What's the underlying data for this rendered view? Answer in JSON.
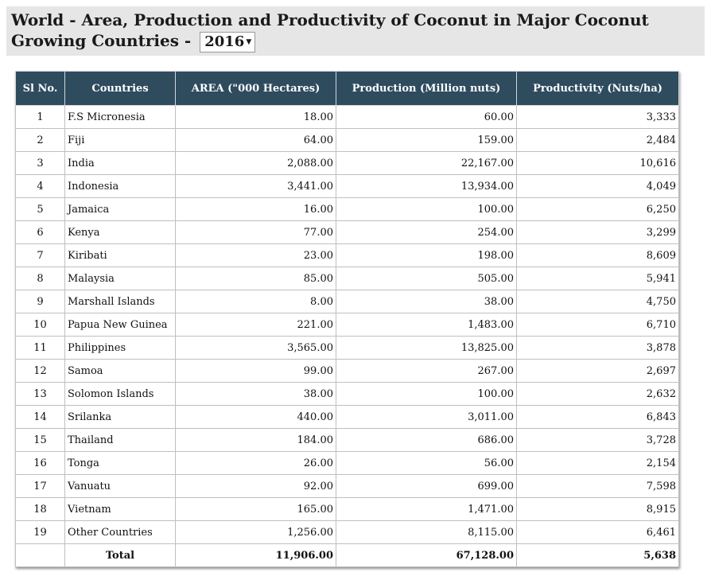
{
  "page": {
    "title_main": "World - Area, Production and Productivity of Coconut in Major Coconut Growing Countries -",
    "year_select": {
      "value": "2016",
      "arrow": "▼"
    }
  },
  "table": {
    "headers": [
      "Sl No.",
      "Countries",
      "AREA (\"000 Hectares)",
      "Production (Million nuts)",
      "Productivity (Nuts/ha)"
    ],
    "rows": [
      {
        "sl": "1",
        "country": "F.S Micronesia",
        "area": "18.00",
        "production": "60.00",
        "productivity": "3,333"
      },
      {
        "sl": "2",
        "country": "Fiji",
        "area": "64.00",
        "production": "159.00",
        "productivity": "2,484"
      },
      {
        "sl": "3",
        "country": "India",
        "area": "2,088.00",
        "production": "22,167.00",
        "productivity": "10,616"
      },
      {
        "sl": "4",
        "country": "Indonesia",
        "area": "3,441.00",
        "production": "13,934.00",
        "productivity": "4,049"
      },
      {
        "sl": "5",
        "country": "Jamaica",
        "area": "16.00",
        "production": "100.00",
        "productivity": "6,250"
      },
      {
        "sl": "6",
        "country": "Kenya",
        "area": "77.00",
        "production": "254.00",
        "productivity": "3,299"
      },
      {
        "sl": "7",
        "country": "Kiribati",
        "area": "23.00",
        "production": "198.00",
        "productivity": "8,609"
      },
      {
        "sl": "8",
        "country": "Malaysia",
        "area": "85.00",
        "production": "505.00",
        "productivity": "5,941"
      },
      {
        "sl": "9",
        "country": "Marshall Islands",
        "area": "8.00",
        "production": "38.00",
        "productivity": "4,750"
      },
      {
        "sl": "10",
        "country": "Papua New Guinea",
        "area": "221.00",
        "production": "1,483.00",
        "productivity": "6,710"
      },
      {
        "sl": "11",
        "country": "Philippines",
        "area": "3,565.00",
        "production": "13,825.00",
        "productivity": "3,878"
      },
      {
        "sl": "12",
        "country": "Samoa",
        "area": "99.00",
        "production": "267.00",
        "productivity": "2,697"
      },
      {
        "sl": "13",
        "country": "Solomon Islands",
        "area": "38.00",
        "production": "100.00",
        "productivity": "2,632"
      },
      {
        "sl": "14",
        "country": "Srilanka",
        "area": "440.00",
        "production": "3,011.00",
        "productivity": "6,843"
      },
      {
        "sl": "15",
        "country": "Thailand",
        "area": "184.00",
        "production": "686.00",
        "productivity": "3,728"
      },
      {
        "sl": "16",
        "country": "Tonga",
        "area": "26.00",
        "production": "56.00",
        "productivity": "2,154"
      },
      {
        "sl": "17",
        "country": "Vanuatu",
        "area": "92.00",
        "production": "699.00",
        "productivity": "7,598"
      },
      {
        "sl": "18",
        "country": "Vietnam",
        "area": "165.00",
        "production": "1,471.00",
        "productivity": "8,915"
      },
      {
        "sl": "19",
        "country": "Other Countries",
        "area": "1,256.00",
        "production": "8,115.00",
        "productivity": "6,461"
      }
    ],
    "total": {
      "label": "Total",
      "area": "11,906.00",
      "production": "67,128.00",
      "productivity": "5,638"
    }
  }
}
